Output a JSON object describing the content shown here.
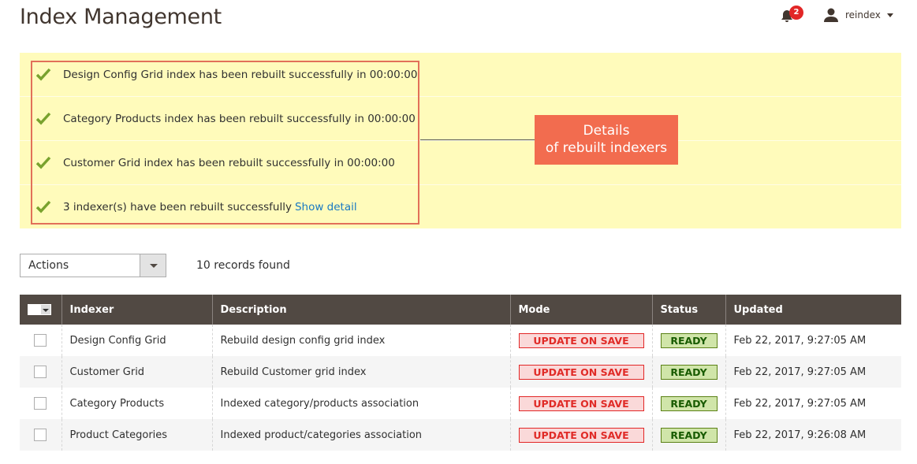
{
  "header": {
    "title": "Index Management",
    "notifications_count": "2",
    "username": "reindex"
  },
  "messages": [
    {
      "text": "Design Config Grid index has been rebuilt successfully in 00:00:00"
    },
    {
      "text": "Category Products index has been rebuilt successfully in 00:00:00"
    },
    {
      "text": "Customer Grid index has been rebuilt successfully in 00:00:00"
    },
    {
      "text": "3 indexer(s) have been rebuilt successfully",
      "link": "Show detail"
    }
  ],
  "callout": {
    "line1": "Details",
    "line2": "of rebuilt indexers"
  },
  "toolbar": {
    "actions_label": "Actions",
    "records": "10 records found"
  },
  "table": {
    "columns": [
      "Indexer",
      "Description",
      "Mode",
      "Status",
      "Updated"
    ],
    "rows": [
      {
        "indexer": "Design Config Grid",
        "description": "Rebuild design config grid index",
        "mode": "UPDATE ON SAVE",
        "status": "READY",
        "updated": "Feb 22, 2017, 9:27:05 AM"
      },
      {
        "indexer": "Customer Grid",
        "description": "Rebuild Customer grid index",
        "mode": "UPDATE ON SAVE",
        "status": "READY",
        "updated": "Feb 22, 2017, 9:27:05 AM"
      },
      {
        "indexer": "Category Products",
        "description": "Indexed category/products association",
        "mode": "UPDATE ON SAVE",
        "status": "READY",
        "updated": "Feb 22, 2017, 9:27:05 AM"
      },
      {
        "indexer": "Product Categories",
        "description": "Indexed product/categories association",
        "mode": "UPDATE ON SAVE",
        "status": "READY",
        "updated": "Feb 22, 2017, 9:26:08 AM"
      }
    ]
  },
  "colors": {
    "header_bg": "#514943",
    "banner_bg": "#fffbbb",
    "callout": "#f26c4f",
    "success_check": "#79a22e",
    "link": "#1979c3"
  }
}
